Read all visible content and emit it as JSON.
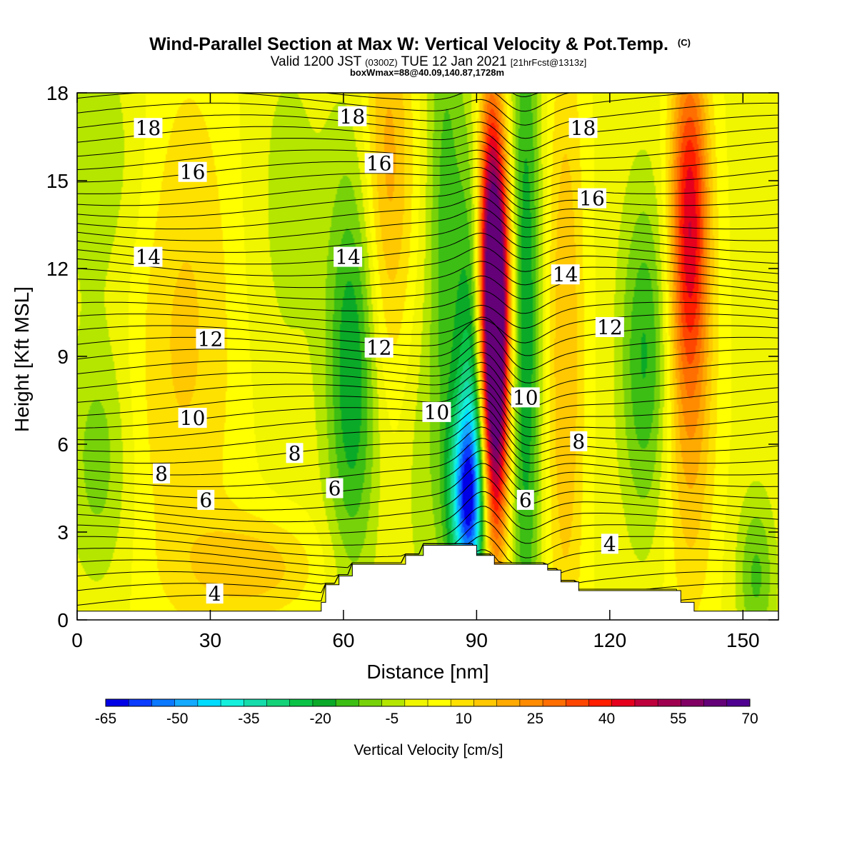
{
  "chart_data": {
    "type": "heatmap",
    "title": "Wind-Parallel Section at Max W: Vertical Velocity & Pot.Temp.",
    "title_mark": "(C)",
    "subtitle": {
      "valid": "Valid 1200 JST",
      "utc": "(0300Z)",
      "date": "TUE 12 Jan 2021",
      "fcst": "[21hrFcst@1313z]"
    },
    "info": "boxWmax=88@40.09,140.87,1728m",
    "xlabel": "Distance [nm]",
    "ylabel": "Height [Kft MSL]",
    "xlim": [
      0,
      158
    ],
    "ylim": [
      0,
      18
    ],
    "x_ticks": [
      0,
      30,
      60,
      90,
      120,
      150
    ],
    "y_ticks": [
      0,
      3,
      6,
      9,
      12,
      15,
      18
    ],
    "grid": false,
    "colorbar": {
      "label": "Vertical Velocity [cm/s]",
      "levels": [
        -65,
        -60,
        -55,
        -50,
        -45,
        -40,
        -35,
        -30,
        -25,
        -20,
        -15,
        -10,
        -5,
        0,
        5,
        10,
        15,
        20,
        25,
        30,
        35,
        40,
        45,
        50,
        55,
        60,
        65,
        70
      ],
      "tick_labels": [
        "-65",
        "-50",
        "-35",
        "-20",
        "-5",
        "10",
        "25",
        "40",
        "55",
        "70"
      ],
      "colors": [
        "#0000e6",
        "#0a3cff",
        "#0a78ff",
        "#14aaff",
        "#00dcff",
        "#14f0dc",
        "#14dcaa",
        "#14d278",
        "#0ac346",
        "#0aaa28",
        "#3cbe14",
        "#78d20a",
        "#b4e600",
        "#f0f500",
        "#ffff00",
        "#ffe100",
        "#ffc800",
        "#ffaa00",
        "#ff8c00",
        "#ff6e00",
        "#ff4600",
        "#ff1e00",
        "#e6001e",
        "#be003c",
        "#a00050",
        "#820064",
        "#640078",
        "#500090"
      ]
    },
    "terrain_profile": {
      "x": [
        0,
        55,
        55,
        56,
        56,
        59,
        59,
        62,
        62,
        65,
        65,
        74,
        74,
        78,
        78,
        90,
        90,
        94,
        94,
        106,
        106,
        109,
        109,
        113,
        113,
        136,
        136,
        139,
        139,
        158
      ],
      "y": [
        0.3,
        0.3,
        0.6,
        0.6,
        1.2,
        1.2,
        1.5,
        1.5,
        1.9,
        1.9,
        1.9,
        1.9,
        2.2,
        2.2,
        2.55,
        2.55,
        2.2,
        2.2,
        1.9,
        1.9,
        1.7,
        1.7,
        1.3,
        1.3,
        1.0,
        1.0,
        0.6,
        0.6,
        0.3,
        0.3
      ]
    },
    "velocity_features": [
      {
        "x": 6,
        "y": 15.5,
        "value": -8,
        "sx": 8,
        "sy": 3.5
      },
      {
        "x": 5,
        "y": 5.5,
        "value": -12,
        "sx": 5,
        "sy": 3
      },
      {
        "x": 24,
        "y": 10,
        "value": 12,
        "sx": 9,
        "sy": 7
      },
      {
        "x": 40,
        "y": 1.8,
        "value": 14,
        "sx": 10,
        "sy": 1.2
      },
      {
        "x": 47,
        "y": 14,
        "value": -6,
        "sx": 7,
        "sy": 5
      },
      {
        "x": 62,
        "y": 8.5,
        "value": -24,
        "sx": 4,
        "sy": 5
      },
      {
        "x": 70,
        "y": 15.5,
        "value": 18,
        "sx": 4,
        "sy": 5
      },
      {
        "x": 77,
        "y": 5,
        "value": -5,
        "sx": 3,
        "sy": 4
      },
      {
        "x": 83,
        "y": 13,
        "value": -16,
        "sx": 3,
        "sy": 8
      },
      {
        "x": 88,
        "y": 4.2,
        "value": -48,
        "sx": 2.8,
        "sy": 2.2
      },
      {
        "x": 89,
        "y": 7,
        "value": -26,
        "sx": 2.5,
        "sy": 6
      },
      {
        "x": 94,
        "y": 8,
        "value": 75,
        "sx": 2.2,
        "sy": 4
      },
      {
        "x": 94,
        "y": 12.5,
        "value": 45,
        "sx": 2.4,
        "sy": 3
      },
      {
        "x": 93,
        "y": 16.5,
        "value": 18,
        "sx": 2,
        "sy": 3
      },
      {
        "x": 101,
        "y": 10,
        "value": -24,
        "sx": 2.5,
        "sy": 9
      },
      {
        "x": 110,
        "y": 9,
        "value": 16,
        "sx": 3,
        "sy": 8
      },
      {
        "x": 128,
        "y": 9,
        "value": -20,
        "sx": 4,
        "sy": 4
      },
      {
        "x": 138,
        "y": 14,
        "value": 40,
        "sx": 3,
        "sy": 4
      },
      {
        "x": 138,
        "y": 7,
        "value": 16,
        "sx": 4,
        "sy": 5
      },
      {
        "x": 153,
        "y": 1.5,
        "value": -15,
        "sx": 3,
        "sy": 2
      }
    ],
    "theta_contour_labels": [
      {
        "text": "18",
        "x": 16,
        "y": 16.8
      },
      {
        "text": "18",
        "x": 62,
        "y": 17.2
      },
      {
        "text": "18",
        "x": 114,
        "y": 16.8
      },
      {
        "text": "16",
        "x": 26,
        "y": 15.3
      },
      {
        "text": "16",
        "x": 68,
        "y": 15.6
      },
      {
        "text": "16",
        "x": 116,
        "y": 14.4
      },
      {
        "text": "14",
        "x": 16,
        "y": 12.4
      },
      {
        "text": "14",
        "x": 61,
        "y": 12.4
      },
      {
        "text": "14",
        "x": 110,
        "y": 11.8
      },
      {
        "text": "12",
        "x": 30,
        "y": 9.6
      },
      {
        "text": "12",
        "x": 68,
        "y": 9.3
      },
      {
        "text": "12",
        "x": 120,
        "y": 10
      },
      {
        "text": "10",
        "x": 26,
        "y": 6.9
      },
      {
        "text": "10",
        "x": 81,
        "y": 7.1
      },
      {
        "text": "10",
        "x": 101,
        "y": 7.6
      },
      {
        "text": "8",
        "x": 19,
        "y": 5
      },
      {
        "text": "8",
        "x": 49,
        "y": 5.7
      },
      {
        "text": "8",
        "x": 113,
        "y": 6.1
      },
      {
        "text": "6",
        "x": 29,
        "y": 4.1
      },
      {
        "text": "6",
        "x": 58,
        "y": 4.5
      },
      {
        "text": "6",
        "x": 101,
        "y": 4.1
      },
      {
        "text": "4",
        "x": 31,
        "y": 0.9
      },
      {
        "text": "4",
        "x": 120,
        "y": 2.6
      }
    ]
  }
}
